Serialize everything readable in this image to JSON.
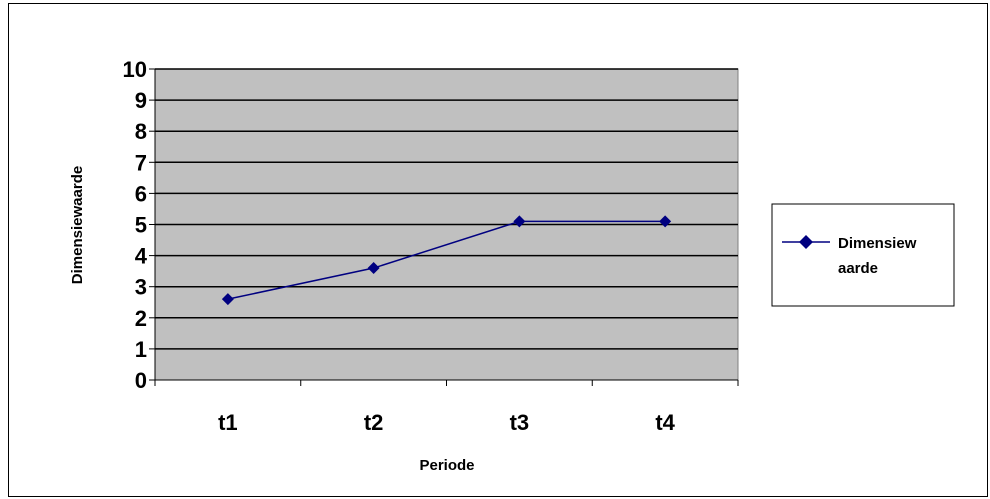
{
  "chart_data": {
    "type": "line",
    "categories": [
      "t1",
      "t2",
      "t3",
      "t4"
    ],
    "series": [
      {
        "name": "Dimensiewaarde",
        "values": [
          2.6,
          3.6,
          5.1,
          5.1
        ],
        "color": "#000080",
        "marker": "diamond"
      }
    ],
    "title": "",
    "xlabel": "Periode",
    "ylabel": "Dimensiewaarde",
    "ylim": [
      0,
      10
    ],
    "yticks": [
      "0",
      "1",
      "2",
      "3",
      "4",
      "5",
      "6",
      "7",
      "8",
      "9",
      "10"
    ],
    "grid": true,
    "plot_background": "#c0c0c0",
    "legend": {
      "placement": "right",
      "lines": [
        "Dimensiew",
        "aarde"
      ]
    }
  }
}
